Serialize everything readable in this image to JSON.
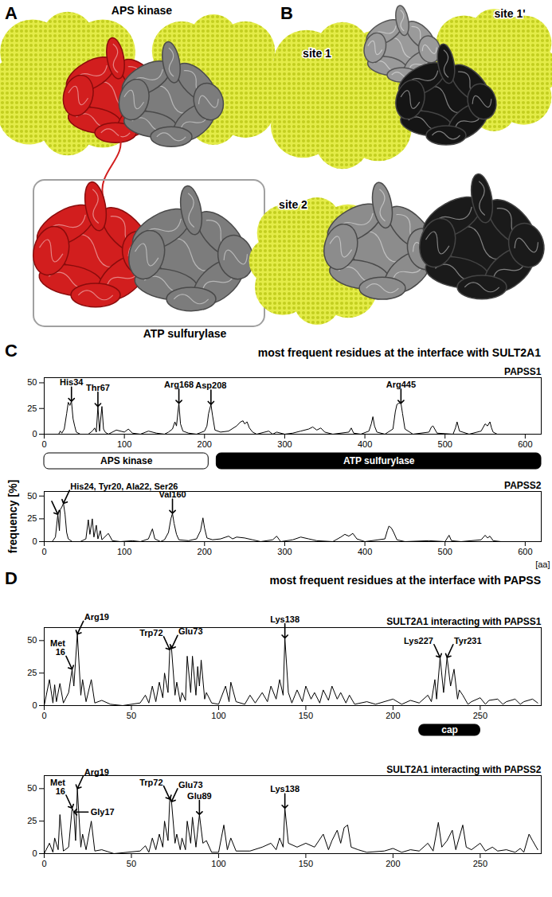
{
  "figure": {
    "panels": [
      {
        "letter": "A",
        "labels": [
          "APS kinase",
          "ATP sulfurylase"
        ]
      },
      {
        "letter": "B",
        "labels": [
          "site 1",
          "site 1'",
          "site 2"
        ]
      },
      {
        "letter": "C",
        "title": "most frequent residues at the interface with SULT2A1",
        "domains": [
          {
            "name": "APS kinase",
            "start": 0,
            "end": 205,
            "color": "#ffffff"
          },
          {
            "name": "ATP sulfurylase",
            "start": 215,
            "end": 620,
            "color": "#000000"
          }
        ]
      },
      {
        "letter": "D",
        "title": "most frequent residues at the interface with PAPSS",
        "cap": {
          "text": "cap",
          "start": 215,
          "end": 250
        }
      }
    ]
  },
  "chart_data": [
    {
      "type": "line",
      "panel": "C",
      "title": "PAPSS1",
      "color": "#000000",
      "x": [
        0,
        18,
        20,
        22,
        25,
        28,
        30,
        32,
        34,
        36,
        38,
        40,
        45,
        55,
        60,
        63,
        65,
        67,
        69,
        72,
        74,
        76,
        80,
        90,
        100,
        105,
        110,
        120,
        130,
        140,
        150,
        155,
        160,
        163,
        165,
        168,
        170,
        173,
        180,
        190,
        200,
        203,
        205,
        208,
        210,
        213,
        220,
        230,
        240,
        245,
        248,
        250,
        253,
        256,
        260,
        265,
        280,
        285,
        290,
        300,
        310,
        320,
        330,
        335,
        340,
        345,
        350,
        360,
        380,
        383,
        386,
        395,
        405,
        408,
        410,
        412,
        415,
        425,
        435,
        438,
        440,
        442,
        445,
        447,
        450,
        460,
        480,
        483,
        485,
        490,
        510,
        513,
        515,
        518,
        530,
        545,
        550,
        553,
        556,
        558,
        560,
        565,
        580,
        600,
        620
      ],
      "values": [
        0,
        0,
        3,
        1,
        5,
        20,
        31,
        28,
        32,
        15,
        8,
        2,
        0,
        0,
        3,
        6,
        2,
        27,
        3,
        27,
        5,
        2,
        0,
        4,
        2,
        5,
        1,
        0,
        3,
        1,
        0,
        2,
        5,
        12,
        8,
        30,
        10,
        3,
        1,
        0,
        3,
        8,
        20,
        29,
        18,
        4,
        2,
        3,
        8,
        12,
        13,
        10,
        12,
        6,
        2,
        0,
        3,
        0,
        2,
        0,
        1,
        3,
        5,
        7,
        4,
        6,
        2,
        0,
        2,
        6,
        1,
        0,
        3,
        10,
        17,
        8,
        2,
        0,
        5,
        22,
        29,
        30,
        30,
        20,
        5,
        0,
        2,
        7,
        8,
        1,
        0,
        6,
        12,
        3,
        0,
        3,
        10,
        8,
        12,
        6,
        2,
        0,
        0,
        0,
        0
      ],
      "xlim": [
        0,
        620
      ],
      "xticks": [
        0,
        100,
        200,
        300,
        400,
        500,
        600
      ],
      "ylim": [
        0,
        55
      ],
      "yticks": [
        0,
        25,
        50
      ],
      "annotations": [
        {
          "text": "His34",
          "x": 34,
          "y": 32
        },
        {
          "text": "Thr67",
          "x": 67,
          "y": 27
        },
        {
          "text": "Arg168",
          "x": 168,
          "y": 30
        },
        {
          "text": "Asp208",
          "x": 208,
          "y": 29
        },
        {
          "text": "Arg445",
          "x": 445,
          "y": 30
        }
      ]
    },
    {
      "type": "line",
      "panel": "C",
      "title": "PAPSS2",
      "color": "#000000",
      "x": [
        0,
        10,
        14,
        17,
        19,
        20,
        22,
        24,
        26,
        28,
        30,
        35,
        45,
        52,
        55,
        57,
        60,
        62,
        65,
        67,
        70,
        72,
        80,
        85,
        95,
        110,
        120,
        130,
        135,
        138,
        145,
        150,
        155,
        158,
        160,
        162,
        165,
        168,
        180,
        190,
        195,
        198,
        200,
        203,
        210,
        220,
        230,
        235,
        240,
        250,
        260,
        270,
        285,
        290,
        295,
        310,
        320,
        330,
        340,
        360,
        370,
        375,
        380,
        385,
        390,
        400,
        425,
        428,
        430,
        433,
        436,
        440,
        450,
        480,
        500,
        505,
        508,
        520,
        545,
        550,
        553,
        556,
        560,
        570,
        590
      ],
      "values": [
        0,
        0,
        5,
        30,
        12,
        35,
        38,
        42,
        30,
        10,
        3,
        0,
        0,
        3,
        24,
        8,
        25,
        5,
        18,
        3,
        12,
        2,
        9,
        1,
        0,
        1,
        0,
        3,
        14,
        3,
        0,
        2,
        10,
        25,
        31,
        20,
        8,
        2,
        1,
        3,
        12,
        26,
        15,
        4,
        2,
        3,
        6,
        3,
        5,
        4,
        2,
        0,
        2,
        6,
        0,
        2,
        5,
        3,
        1,
        0,
        5,
        8,
        6,
        9,
        3,
        0,
        3,
        12,
        17,
        15,
        10,
        2,
        0,
        1,
        0,
        7,
        1,
        0,
        2,
        7,
        4,
        6,
        1,
        0,
        0
      ],
      "xlim": [
        0,
        620
      ],
      "xticks": [
        0,
        100,
        200,
        300,
        400,
        500,
        600
      ],
      "ylim": [
        0,
        55
      ],
      "yticks": [
        0,
        25,
        50
      ],
      "xlabel": "[aa]",
      "ylabel": "frequency [%]",
      "annotations": [
        {
          "text": "His24, Tyr20, Ala22, Ser26",
          "x": 24,
          "y": 42
        },
        {
          "text": "Val160",
          "x": 160,
          "y": 31
        }
      ],
      "arrows": [
        {
          "x": 17,
          "y": 30
        }
      ]
    },
    {
      "type": "line",
      "panel": "D",
      "title": "SULT2A1 interacting with PAPSS1",
      "color": "#000000",
      "x": [
        0,
        3,
        5,
        6,
        7,
        9,
        11,
        14,
        16,
        17,
        19,
        21,
        22,
        24,
        27,
        29,
        33,
        38,
        45,
        55,
        58,
        60,
        62,
        64,
        66,
        68,
        69,
        71,
        72,
        73,
        75,
        76,
        78,
        79,
        81,
        82,
        84,
        85,
        87,
        88,
        89,
        90,
        92,
        93,
        96,
        100,
        104,
        106,
        107,
        110,
        115,
        118,
        121,
        125,
        128,
        130,
        133,
        135,
        137,
        138,
        140,
        142,
        145,
        148,
        150,
        153,
        155,
        158,
        160,
        163,
        165,
        168,
        170,
        173,
        175,
        178,
        185,
        190,
        200,
        205,
        210,
        215,
        220,
        222,
        224,
        225,
        227,
        229,
        231,
        233,
        235,
        237,
        238,
        240,
        243,
        245,
        250,
        253,
        255,
        260,
        263,
        265,
        270,
        273,
        275,
        280,
        283
      ],
      "values": [
        0,
        20,
        2,
        16,
        3,
        17,
        2,
        10,
        28,
        15,
        55,
        8,
        20,
        3,
        20,
        2,
        4,
        1,
        0,
        2,
        8,
        2,
        15,
        3,
        18,
        6,
        25,
        10,
        43,
        44,
        8,
        18,
        3,
        10,
        4,
        38,
        10,
        38,
        8,
        30,
        15,
        35,
        5,
        10,
        2,
        1,
        15,
        3,
        18,
        3,
        1,
        8,
        2,
        10,
        3,
        15,
        5,
        20,
        8,
        52,
        10,
        2,
        12,
        3,
        15,
        5,
        10,
        2,
        12,
        4,
        15,
        5,
        10,
        2,
        8,
        1,
        3,
        1,
        5,
        1,
        4,
        2,
        8,
        3,
        20,
        5,
        37,
        10,
        37,
        15,
        28,
        5,
        12,
        8,
        1,
        3,
        6,
        1,
        4,
        5,
        1,
        3,
        5,
        1,
        3,
        5,
        2
      ],
      "xlim": [
        0,
        285
      ],
      "xticks": [
        0,
        50,
        100,
        150,
        200,
        250
      ],
      "ylim": [
        0,
        60
      ],
      "yticks": [
        0,
        25,
        50
      ],
      "annotations": [
        {
          "text": "Met\n16",
          "x": 16,
          "y": 28
        },
        {
          "text": "Arg19",
          "x": 19,
          "y": 55
        },
        {
          "text": "Trp72",
          "x": 72,
          "y": 43
        },
        {
          "text": "Glu73",
          "x": 73,
          "y": 44
        },
        {
          "text": "Lys138",
          "x": 138,
          "y": 52
        },
        {
          "text": "Lys227",
          "x": 227,
          "y": 37
        },
        {
          "text": "Tyr231",
          "x": 231,
          "y": 37
        }
      ]
    },
    {
      "type": "line",
      "panel": "D",
      "title": "SULT2A1 interacting with PAPSS2",
      "color": "#000000",
      "x": [
        0,
        3,
        5,
        6,
        8,
        9,
        11,
        14,
        16,
        17,
        18,
        19,
        21,
        22,
        24,
        27,
        29,
        33,
        40,
        55,
        58,
        60,
        62,
        64,
        66,
        68,
        69,
        71,
        72,
        73,
        75,
        76,
        78,
        79,
        81,
        82,
        84,
        85,
        87,
        89,
        91,
        93,
        96,
        100,
        103,
        105,
        107,
        110,
        118,
        125,
        130,
        133,
        135,
        137,
        138,
        140,
        145,
        150,
        155,
        160,
        163,
        165,
        168,
        170,
        172,
        174,
        176,
        180,
        185,
        195,
        200,
        205,
        210,
        215,
        220,
        223,
        226,
        228,
        231,
        234,
        236,
        240,
        242,
        245,
        250,
        253,
        257,
        260,
        265,
        270,
        273,
        275,
        278,
        280,
        283
      ],
      "values": [
        0,
        8,
        1,
        12,
        3,
        30,
        2,
        5,
        35,
        32,
        10,
        50,
        5,
        15,
        3,
        25,
        2,
        3,
        0,
        2,
        6,
        1,
        12,
        3,
        15,
        5,
        25,
        10,
        42,
        40,
        8,
        15,
        3,
        12,
        3,
        25,
        8,
        28,
        5,
        30,
        8,
        10,
        1,
        1,
        22,
        3,
        12,
        2,
        2,
        5,
        8,
        3,
        12,
        5,
        35,
        8,
        5,
        8,
        5,
        15,
        3,
        10,
        18,
        8,
        20,
        22,
        5,
        3,
        1,
        2,
        4,
        1,
        3,
        2,
        8,
        2,
        24,
        5,
        10,
        18,
        3,
        22,
        5,
        3,
        8,
        2,
        5,
        2,
        3,
        1,
        4,
        1,
        15,
        10,
        3
      ],
      "xlim": [
        0,
        285
      ],
      "xticks": [
        0,
        50,
        100,
        150,
        200,
        250
      ],
      "ylim": [
        0,
        60
      ],
      "yticks": [
        0,
        25,
        50
      ],
      "annotations": [
        {
          "text": "Met\n16",
          "x": 16,
          "y": 35
        },
        {
          "text": "Gly17",
          "x": 17,
          "y": 32
        },
        {
          "text": "Arg19",
          "x": 19,
          "y": 50
        },
        {
          "text": "Trp72",
          "x": 72,
          "y": 42
        },
        {
          "text": "Glu73",
          "x": 73,
          "y": 40
        },
        {
          "text": "Glu89",
          "x": 89,
          "y": 30
        },
        {
          "text": "Lys138",
          "x": 138,
          "y": 35
        }
      ]
    }
  ]
}
